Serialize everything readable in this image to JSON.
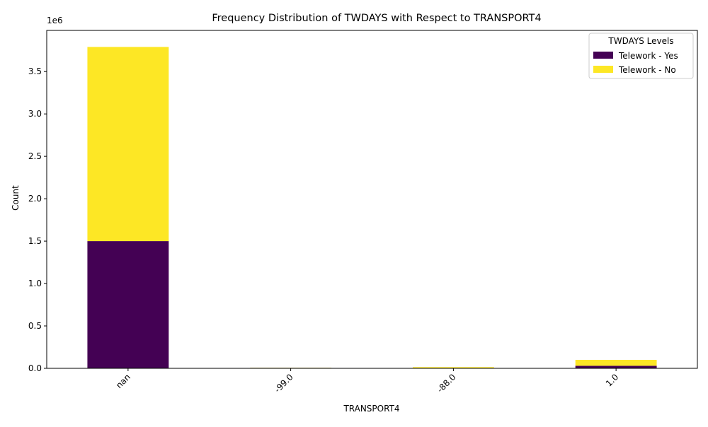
{
  "chart_data": {
    "type": "bar",
    "stacked": true,
    "title": "Frequency Distribution of TWDAYS with Respect to TRANSPORT4",
    "xlabel": "TRANSPORT4",
    "ylabel": "Count",
    "y_offset_label": "1e6",
    "categories": [
      "nan",
      "-99.0",
      "-88.0",
      "1.0"
    ],
    "y_ticks": [
      0,
      500000,
      1000000,
      1500000,
      2000000,
      2500000,
      3000000,
      3500000
    ],
    "y_tick_labels": [
      "0.0",
      "0.5",
      "1.0",
      "1.5",
      "2.0",
      "2.5",
      "3.0",
      "3.5"
    ],
    "ylim": [
      0,
      3985000
    ],
    "grid": false,
    "legend": {
      "title": "TWDAYS Levels",
      "position": "top-right"
    },
    "series": [
      {
        "name": "Telework - Yes",
        "color": "#440154",
        "values": [
          1500000,
          5000,
          3000,
          30000
        ]
      },
      {
        "name": "Telework - No",
        "color": "#fde725",
        "values": [
          2290000,
          1000,
          11000,
          70000
        ]
      }
    ]
  }
}
